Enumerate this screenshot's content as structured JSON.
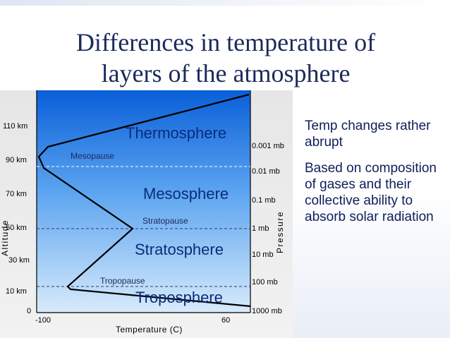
{
  "title_line1": "Differences in temperature of",
  "title_line2": "layers of the atmosphere",
  "bullets": [
    "Temp changes rather abrupt",
    "Based on composition of gases and their collective ability to absorb solar radiation"
  ],
  "diagram": {
    "layers": [
      "Thermosphere",
      "Mesosphere",
      "Stratosphere",
      "Troposphere"
    ],
    "pauses": [
      "Mesopause",
      "Stratopause",
      "Tropopause"
    ],
    "altitude_label": "Altitude",
    "altitude_ticks": [
      "110 km",
      "90 km",
      "70 km",
      "50 km",
      "30 km",
      "10 km",
      "0"
    ],
    "pressure_label": "Pressure",
    "pressure_ticks": [
      "0.001 mb",
      "0.01 mb",
      "0.1 mb",
      "1 mb",
      "10 mb",
      "100 mb",
      "1000 mb"
    ],
    "temp_label": "Temperature (C)",
    "temp_ticks": [
      "-100",
      "60"
    ],
    "colors": {
      "sky_top": "#0a5fd8",
      "sky_bottom": "#d8ebfb",
      "line": "#000000",
      "text_blue": "#0b2c7a"
    }
  }
}
